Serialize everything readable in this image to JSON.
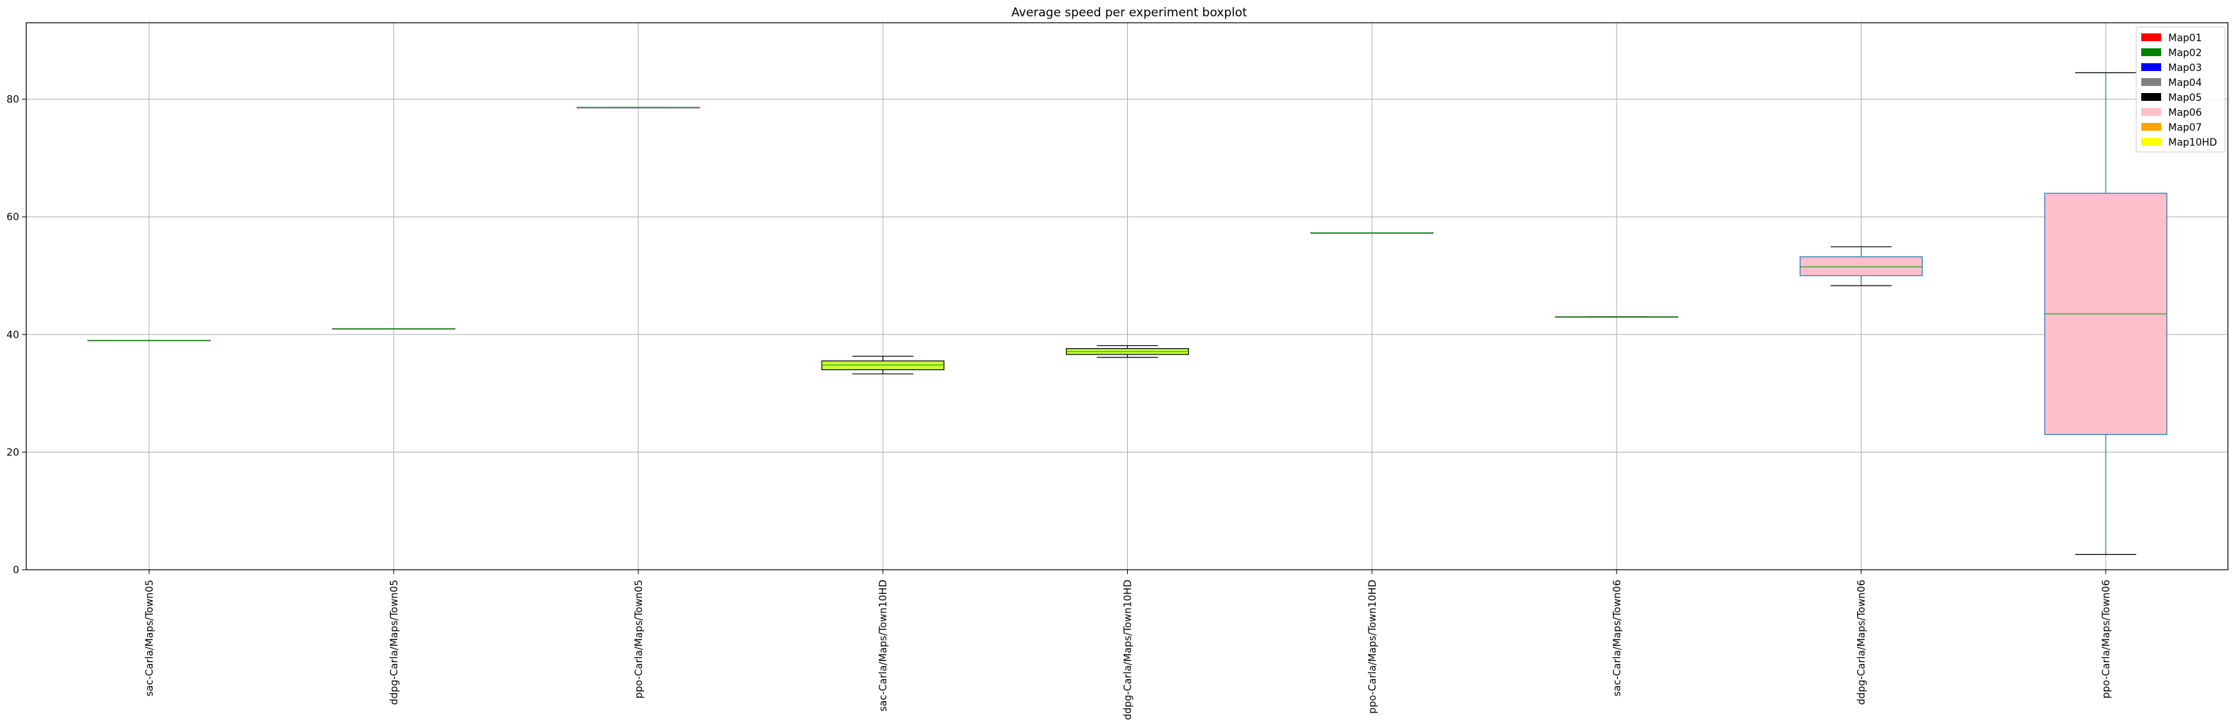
{
  "chart_data": {
    "type": "boxplot",
    "title": "Average speed per experiment boxplot",
    "xlabel": "",
    "ylabel": "",
    "ylim": [
      0,
      93
    ],
    "yticks": [
      0,
      20,
      40,
      60,
      80
    ],
    "grid": true,
    "legend_position": "top-right",
    "legend": [
      {
        "label": "Map01",
        "color": "#ff0000"
      },
      {
        "label": "Map02",
        "color": "#008000"
      },
      {
        "label": "Map03",
        "color": "#0000ff"
      },
      {
        "label": "Map04",
        "color": "#808080"
      },
      {
        "label": "Map05",
        "color": "#000000"
      },
      {
        "label": "Map06",
        "color": "#ffc0cb"
      },
      {
        "label": "Map07",
        "color": "#ffa500"
      },
      {
        "label": "Map10HD",
        "color": "#ffff00"
      }
    ],
    "categories": [
      "sac-Carla/Maps/Town05",
      "ddpg-Carla/Maps/Town05",
      "ppo-Carla/Maps/Town05",
      "sac-Carla/Maps/Town10HD",
      "ddpg-Carla/Maps/Town10HD",
      "ppo-Carla/Maps/Town10HD",
      "sac-Carla/Maps/Town06",
      "ddpg-Carla/Maps/Town06",
      "ppo-Carla/Maps/Town06"
    ],
    "boxes": [
      {
        "min": 39.0,
        "q1": 39.0,
        "median": 39.0,
        "q3": 39.0,
        "max": 39.0,
        "fill": "#000000"
      },
      {
        "min": 41.0,
        "q1": 41.0,
        "median": 41.0,
        "q3": 41.0,
        "max": 41.0,
        "fill": "#000000"
      },
      {
        "min": 78.6,
        "q1": 78.6,
        "median": 78.6,
        "q3": 78.6,
        "max": 78.6,
        "fill": "#000000"
      },
      {
        "min": 33.3,
        "q1": 34.0,
        "median": 34.8,
        "q3": 35.5,
        "max": 36.3,
        "fill": "#ccff33"
      },
      {
        "min": 36.1,
        "q1": 36.6,
        "median": 37.1,
        "q3": 37.6,
        "max": 38.1,
        "fill": "#ccff33"
      },
      {
        "min": 57.3,
        "q1": 57.3,
        "median": 57.3,
        "q3": 57.3,
        "max": 57.3,
        "fill": "#000000"
      },
      {
        "min": 43.0,
        "q1": 43.0,
        "median": 43.0,
        "q3": 43.0,
        "max": 43.0,
        "fill": "#000000"
      },
      {
        "min": 48.3,
        "q1": 50.0,
        "median": 51.5,
        "q3": 53.2,
        "max": 54.9,
        "fill": "#ffc0cb"
      },
      {
        "min": 2.6,
        "q1": 23.0,
        "median": 43.5,
        "q3": 64.0,
        "max": 84.5,
        "fill": "#ffc0cb"
      }
    ]
  }
}
